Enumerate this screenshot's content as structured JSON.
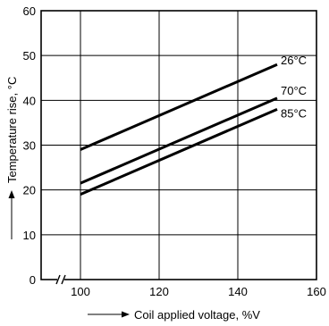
{
  "chart_data": {
    "type": "line",
    "xlabel": "Coil applied voltage, %V",
    "ylabel": "Temperature rise, °C",
    "xlim": [
      90,
      160
    ],
    "ylim": [
      0,
      60
    ],
    "x_ticks": [
      "100",
      "120",
      "140",
      "160"
    ],
    "y_ticks": [
      "0",
      "10",
      "20",
      "30",
      "40",
      "50",
      "60"
    ],
    "grid": true,
    "x_axis_break": true,
    "series": [
      {
        "name": "26°C",
        "x": [
          100,
          150
        ],
        "y": [
          29,
          48
        ]
      },
      {
        "name": "70°C",
        "x": [
          100,
          150
        ],
        "y": [
          21.5,
          40.5
        ]
      },
      {
        "name": "85°C",
        "x": [
          100,
          150
        ],
        "y": [
          19,
          38
        ]
      }
    ]
  }
}
